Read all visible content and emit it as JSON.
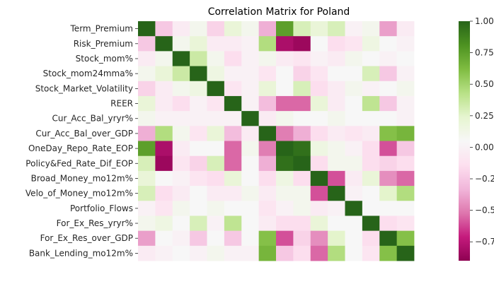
{
  "chart_data": {
    "type": "heatmap",
    "title": "Correlation Matrix for Poland",
    "xlabel": "",
    "ylabel": "",
    "variables": [
      "Term_Premium",
      "Risk_Premium",
      "Stock_mom%",
      "Stock_mom24mma%",
      "Stock_Market_Volatility",
      "REER",
      "Cur_Acc_Bal_yryr%",
      "Cur_Acc_Bal_over_GDP",
      "OneDay_Repo_Rate_EOP",
      "Policy&Fed_Rate_Dif_EOP",
      "Broad_Money_mo12m%",
      "Velo_of_Money_mo12m%",
      "Portfolio_Flows",
      "For_Ex_Res_yryr%",
      "For_Ex_Res_over_GDP",
      "Bank_Lending_mo12m%"
    ],
    "matrix": [
      [
        1.0,
        -0.25,
        -0.05,
        0.1,
        -0.2,
        0.2,
        0.1,
        -0.35,
        0.75,
        0.3,
        0.2,
        0.3,
        0.0,
        0.1,
        -0.4,
        -0.05
      ],
      [
        -0.25,
        1.0,
        0.1,
        0.2,
        -0.05,
        -0.05,
        0.0,
        0.45,
        -0.8,
        -0.85,
        0.05,
        -0.15,
        -0.1,
        0.15,
        0.05,
        0.0
      ],
      [
        -0.05,
        0.1,
        1.0,
        0.35,
        0.1,
        -0.15,
        0.0,
        0.1,
        -0.05,
        -0.1,
        0.0,
        -0.05,
        0.1,
        0.05,
        0.0,
        0.05
      ],
      [
        0.1,
        0.2,
        0.35,
        1.0,
        0.15,
        0.0,
        0.0,
        -0.1,
        0.05,
        -0.2,
        -0.1,
        0.05,
        0.05,
        0.3,
        -0.25,
        0.0
      ],
      [
        -0.2,
        -0.05,
        0.1,
        0.15,
        1.0,
        -0.1,
        0.0,
        0.2,
        0.05,
        0.3,
        -0.15,
        -0.05,
        0.1,
        0.0,
        0.05,
        0.1
      ],
      [
        0.2,
        -0.05,
        -0.15,
        0.0,
        -0.1,
        1.0,
        0.0,
        -0.3,
        -0.55,
        -0.55,
        0.2,
        -0.05,
        0.05,
        0.4,
        -0.25,
        0.0
      ],
      [
        0.1,
        0.0,
        0.0,
        0.0,
        0.0,
        0.0,
        1.0,
        -0.05,
        0.1,
        0.05,
        0.05,
        0.1,
        0.05,
        0.05,
        0.05,
        0.0
      ],
      [
        -0.35,
        0.45,
        0.1,
        -0.1,
        0.2,
        -0.3,
        -0.05,
        1.0,
        -0.5,
        -0.35,
        -0.15,
        -0.05,
        -0.1,
        -0.05,
        0.6,
        0.65
      ],
      [
        0.75,
        -0.8,
        -0.05,
        0.05,
        0.05,
        -0.55,
        0.1,
        -0.5,
        1.0,
        0.95,
        0.15,
        0.1,
        0.0,
        -0.15,
        -0.6,
        -0.25
      ],
      [
        0.3,
        -0.85,
        -0.1,
        -0.2,
        0.3,
        -0.55,
        0.05,
        -0.35,
        0.95,
        1.0,
        -0.15,
        0.1,
        0.1,
        -0.15,
        -0.2,
        -0.15
      ],
      [
        0.2,
        0.05,
        0.0,
        -0.1,
        -0.15,
        0.2,
        0.05,
        -0.15,
        0.15,
        -0.15,
        1.0,
        -0.6,
        -0.05,
        0.2,
        -0.45,
        -0.55
      ],
      [
        0.3,
        -0.15,
        -0.05,
        0.05,
        -0.05,
        -0.05,
        0.1,
        -0.05,
        0.1,
        0.1,
        -0.6,
        1.0,
        0.0,
        0.05,
        0.25,
        0.45
      ],
      [
        0.0,
        -0.1,
        0.1,
        0.05,
        0.1,
        0.05,
        0.05,
        -0.1,
        0.0,
        0.1,
        -0.05,
        0.0,
        1.0,
        0.05,
        0.05,
        0.05
      ],
      [
        0.1,
        0.15,
        0.05,
        0.3,
        0.0,
        0.4,
        0.05,
        -0.05,
        -0.15,
        -0.15,
        0.2,
        0.05,
        0.05,
        1.0,
        -0.15,
        -0.1
      ],
      [
        -0.4,
        0.05,
        0.0,
        -0.25,
        0.05,
        -0.25,
        0.05,
        0.6,
        -0.6,
        -0.2,
        -0.45,
        0.25,
        0.05,
        -0.15,
        1.0,
        0.6
      ],
      [
        -0.05,
        0.0,
        0.05,
        0.0,
        0.1,
        0.0,
        0.0,
        0.65,
        -0.25,
        -0.15,
        -0.55,
        0.45,
        0.05,
        -0.1,
        0.6,
        1.0
      ]
    ],
    "colormap": "PiYG",
    "vmin": -0.9,
    "vmax": 1.0,
    "colorbar_ticks": [
      -0.75,
      -0.5,
      -0.25,
      0.0,
      0.25,
      0.5,
      0.75,
      1.0
    ],
    "colorbar_tick_labels": [
      "−0.75",
      "−0.50",
      "−0.25",
      "0.00",
      "0.25",
      "0.50",
      "0.75",
      "1.00"
    ],
    "grid": false,
    "colorbar_position": "right"
  }
}
